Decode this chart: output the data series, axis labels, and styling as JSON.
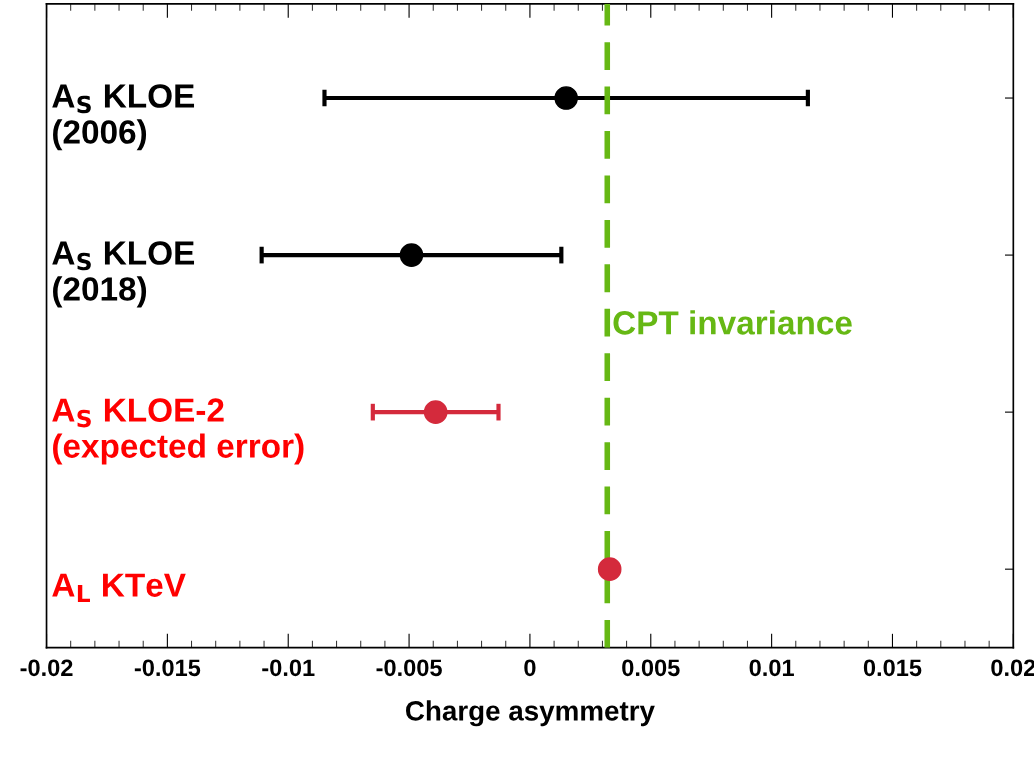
{
  "chart_data": {
    "type": "scatter",
    "orientation": "horizontal",
    "xlabel": "Charge asymmetry",
    "categories": [
      "A$_{S}$ KLOE\n(2006)",
      "A$_{S}$ KLOE\n(2018)",
      "A$_{S}$ KLOE-2\n(expected error)",
      "A$_{L}$ KTeV"
    ],
    "values": [
      0.0015,
      -0.0049,
      -0.0039,
      0.0033
    ],
    "errors": [
      0.01,
      0.0062,
      0.0026,
      null
    ],
    "colors": [
      "#000000",
      "#000000",
      "#d42a3c",
      "#d42a3c"
    ],
    "xlim": [
      -0.02,
      0.02
    ],
    "xticks": [
      -0.02,
      -0.015,
      -0.01,
      -0.005,
      {
        "value": 0,
        "label": "0"
      },
      0.005,
      0.01,
      0.015,
      0.02
    ],
    "ref_lines": [
      {
        "axis": "x",
        "value": 0.0032,
        "label": "CPT invariance",
        "color": "#66b814",
        "line_style": "dashed"
      }
    ],
    "marker": "circle",
    "grid": false,
    "tick_labels": "x"
  }
}
